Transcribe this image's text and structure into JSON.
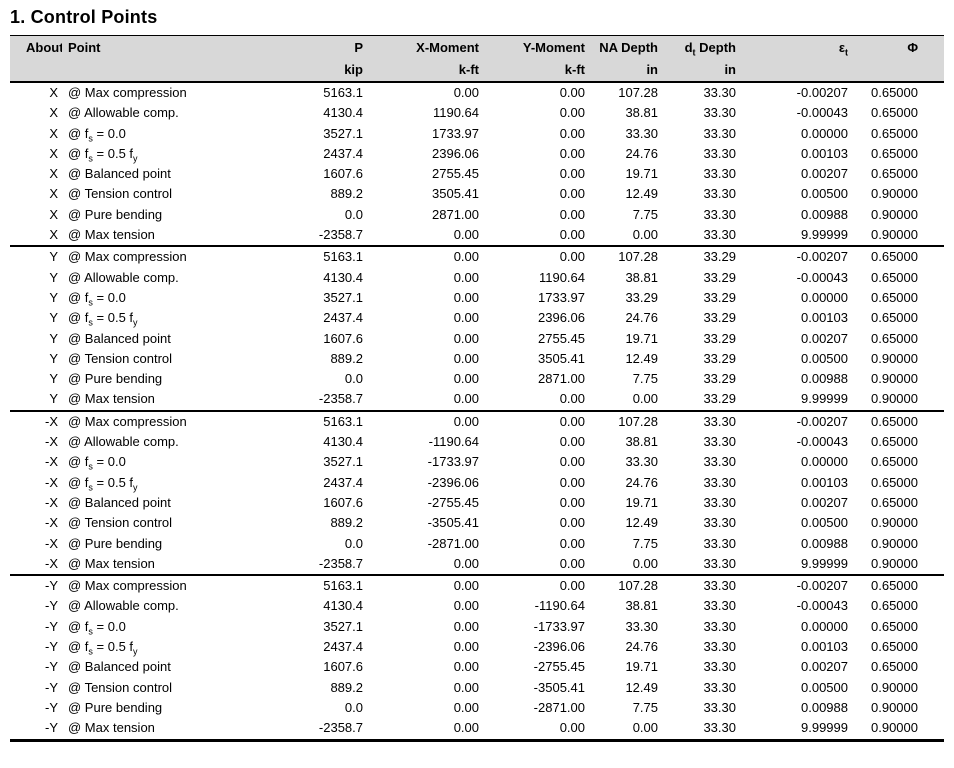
{
  "title": "1. Control Points",
  "colors": {
    "header_bg": "#d8d8d8",
    "border": "#000000",
    "text": "#000000"
  },
  "table": {
    "columns": [
      {
        "key": "about",
        "label": "About",
        "unit": ""
      },
      {
        "key": "point",
        "label": "Point",
        "unit": ""
      },
      {
        "key": "p",
        "label": "P",
        "unit": "kip"
      },
      {
        "key": "x_moment",
        "label": "X-Moment",
        "unit": "k-ft"
      },
      {
        "key": "y_moment",
        "label": "Y-Moment",
        "unit": "k-ft"
      },
      {
        "key": "na_depth",
        "label": "NA Depth",
        "unit": "in"
      },
      {
        "key": "dt_depth",
        "label": "d~t~ Depth",
        "unit": "in"
      },
      {
        "key": "epsilon_t",
        "label": "ε~t~",
        "unit": ""
      },
      {
        "key": "phi",
        "label": "Φ",
        "unit": ""
      }
    ],
    "groups": [
      {
        "about": "X",
        "rows": [
          [
            "@ Max compression",
            "5163.1",
            "0.00",
            "0.00",
            "107.28",
            "33.30",
            "-0.00207",
            "0.65000"
          ],
          [
            "@ Allowable comp.",
            "4130.4",
            "1190.64",
            "0.00",
            "38.81",
            "33.30",
            "-0.00043",
            "0.65000"
          ],
          [
            "@ f~s~ = 0.0",
            "3527.1",
            "1733.97",
            "0.00",
            "33.30",
            "33.30",
            "0.00000",
            "0.65000"
          ],
          [
            "@ f~s~ = 0.5 f~y~",
            "2437.4",
            "2396.06",
            "0.00",
            "24.76",
            "33.30",
            "0.00103",
            "0.65000"
          ],
          [
            "@ Balanced point",
            "1607.6",
            "2755.45",
            "0.00",
            "19.71",
            "33.30",
            "0.00207",
            "0.65000"
          ],
          [
            "@ Tension control",
            "889.2",
            "3505.41",
            "0.00",
            "12.49",
            "33.30",
            "0.00500",
            "0.90000"
          ],
          [
            "@ Pure bending",
            "0.0",
            "2871.00",
            "0.00",
            "7.75",
            "33.30",
            "0.00988",
            "0.90000"
          ],
          [
            "@ Max tension",
            "-2358.7",
            "0.00",
            "0.00",
            "0.00",
            "33.30",
            "9.99999",
            "0.90000"
          ]
        ]
      },
      {
        "about": "Y",
        "rows": [
          [
            "@ Max compression",
            "5163.1",
            "0.00",
            "0.00",
            "107.28",
            "33.29",
            "-0.00207",
            "0.65000"
          ],
          [
            "@ Allowable comp.",
            "4130.4",
            "0.00",
            "1190.64",
            "38.81",
            "33.29",
            "-0.00043",
            "0.65000"
          ],
          [
            "@ f~s~ = 0.0",
            "3527.1",
            "0.00",
            "1733.97",
            "33.29",
            "33.29",
            "0.00000",
            "0.65000"
          ],
          [
            "@ f~s~ = 0.5 f~y~",
            "2437.4",
            "0.00",
            "2396.06",
            "24.76",
            "33.29",
            "0.00103",
            "0.65000"
          ],
          [
            "@ Balanced point",
            "1607.6",
            "0.00",
            "2755.45",
            "19.71",
            "33.29",
            "0.00207",
            "0.65000"
          ],
          [
            "@ Tension control",
            "889.2",
            "0.00",
            "3505.41",
            "12.49",
            "33.29",
            "0.00500",
            "0.90000"
          ],
          [
            "@ Pure bending",
            "0.0",
            "0.00",
            "2871.00",
            "7.75",
            "33.29",
            "0.00988",
            "0.90000"
          ],
          [
            "@ Max tension",
            "-2358.7",
            "0.00",
            "0.00",
            "0.00",
            "33.29",
            "9.99999",
            "0.90000"
          ]
        ]
      },
      {
        "about": "-X",
        "rows": [
          [
            "@ Max compression",
            "5163.1",
            "0.00",
            "0.00",
            "107.28",
            "33.30",
            "-0.00207",
            "0.65000"
          ],
          [
            "@ Allowable comp.",
            "4130.4",
            "-1190.64",
            "0.00",
            "38.81",
            "33.30",
            "-0.00043",
            "0.65000"
          ],
          [
            "@ f~s~ = 0.0",
            "3527.1",
            "-1733.97",
            "0.00",
            "33.30",
            "33.30",
            "0.00000",
            "0.65000"
          ],
          [
            "@ f~s~ = 0.5 f~y~",
            "2437.4",
            "-2396.06",
            "0.00",
            "24.76",
            "33.30",
            "0.00103",
            "0.65000"
          ],
          [
            "@ Balanced point",
            "1607.6",
            "-2755.45",
            "0.00",
            "19.71",
            "33.30",
            "0.00207",
            "0.65000"
          ],
          [
            "@ Tension control",
            "889.2",
            "-3505.41",
            "0.00",
            "12.49",
            "33.30",
            "0.00500",
            "0.90000"
          ],
          [
            "@ Pure bending",
            "0.0",
            "-2871.00",
            "0.00",
            "7.75",
            "33.30",
            "0.00988",
            "0.90000"
          ],
          [
            "@ Max tension",
            "-2358.7",
            "0.00",
            "0.00",
            "0.00",
            "33.30",
            "9.99999",
            "0.90000"
          ]
        ]
      },
      {
        "about": "-Y",
        "rows": [
          [
            "@ Max compression",
            "5163.1",
            "0.00",
            "0.00",
            "107.28",
            "33.30",
            "-0.00207",
            "0.65000"
          ],
          [
            "@ Allowable comp.",
            "4130.4",
            "0.00",
            "-1190.64",
            "38.81",
            "33.30",
            "-0.00043",
            "0.65000"
          ],
          [
            "@ f~s~ = 0.0",
            "3527.1",
            "0.00",
            "-1733.97",
            "33.30",
            "33.30",
            "0.00000",
            "0.65000"
          ],
          [
            "@ f~s~ = 0.5 f~y~",
            "2437.4",
            "0.00",
            "-2396.06",
            "24.76",
            "33.30",
            "0.00103",
            "0.65000"
          ],
          [
            "@ Balanced point",
            "1607.6",
            "0.00",
            "-2755.45",
            "19.71",
            "33.30",
            "0.00207",
            "0.65000"
          ],
          [
            "@ Tension control",
            "889.2",
            "0.00",
            "-3505.41",
            "12.49",
            "33.30",
            "0.00500",
            "0.90000"
          ],
          [
            "@ Pure bending",
            "0.0",
            "0.00",
            "-2871.00",
            "7.75",
            "33.30",
            "0.00988",
            "0.90000"
          ],
          [
            "@ Max tension",
            "-2358.7",
            "0.00",
            "0.00",
            "0.00",
            "33.30",
            "9.99999",
            "0.90000"
          ]
        ]
      }
    ]
  }
}
